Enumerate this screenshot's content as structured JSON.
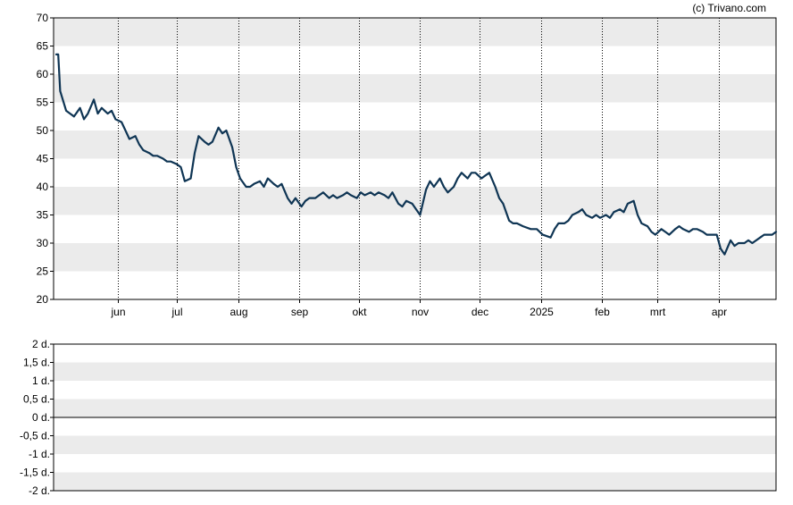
{
  "credit": "(c) Trivano.com",
  "colors": {
    "line": "#0f3554",
    "band": "#ebebeb",
    "axis": "#000000"
  },
  "chart_data": [
    {
      "type": "line",
      "title": "",
      "xlabel": "",
      "ylabel": "",
      "ylim": [
        20,
        70
      ],
      "yticks": [
        "70",
        "65",
        "60",
        "55",
        "50",
        "45",
        "40",
        "35",
        "30",
        "25",
        "20"
      ],
      "xticks": [
        "jun",
        "jul",
        "aug",
        "sep",
        "okt",
        "nov",
        "dec",
        "2025",
        "feb",
        "mrt",
        "apr"
      ],
      "grid": "alternating horizontal bands, dotted vertical lines at month ticks",
      "series": [
        {
          "x": [
            "2024-05-01",
            "2024-05-02",
            "2024-05-03",
            "2024-05-06",
            "2024-05-08",
            "2024-05-10",
            "2024-05-13",
            "2024-05-15",
            "2024-05-17",
            "2024-05-20",
            "2024-05-22",
            "2024-05-24",
            "2024-05-27",
            "2024-05-29",
            "2024-05-31",
            "2024-06-03",
            "2024-06-05",
            "2024-06-07",
            "2024-06-10",
            "2024-06-12",
            "2024-06-14",
            "2024-06-17",
            "2024-06-19",
            "2024-06-21",
            "2024-06-24",
            "2024-06-26",
            "2024-06-28",
            "2024-07-01",
            "2024-07-03",
            "2024-07-05",
            "2024-07-08",
            "2024-07-10",
            "2024-07-12",
            "2024-07-15",
            "2024-07-17",
            "2024-07-19",
            "2024-07-22",
            "2024-07-24",
            "2024-07-26",
            "2024-07-29",
            "2024-07-31",
            "2024-08-02",
            "2024-08-05",
            "2024-08-07",
            "2024-08-09",
            "2024-08-12",
            "2024-08-14",
            "2024-08-16",
            "2024-08-19",
            "2024-08-21",
            "2024-08-23",
            "2024-08-26",
            "2024-08-28",
            "2024-08-30",
            "2024-09-02",
            "2024-09-04",
            "2024-09-06",
            "2024-09-09",
            "2024-09-11",
            "2024-09-13",
            "2024-09-16",
            "2024-09-18",
            "2024-09-20",
            "2024-09-23",
            "2024-09-25",
            "2024-09-27",
            "2024-09-30",
            "2024-10-02",
            "2024-10-04",
            "2024-10-07",
            "2024-10-09",
            "2024-10-11",
            "2024-10-14",
            "2024-10-16",
            "2024-10-18",
            "2024-10-21",
            "2024-10-23",
            "2024-10-25",
            "2024-10-28",
            "2024-10-30",
            "2024-11-01",
            "2024-11-04",
            "2024-11-06",
            "2024-11-08",
            "2024-11-11",
            "2024-11-13",
            "2024-11-15",
            "2024-11-18",
            "2024-11-20",
            "2024-11-22",
            "2024-11-25",
            "2024-11-27",
            "2024-11-29",
            "2024-12-02",
            "2024-12-04",
            "2024-12-06",
            "2024-12-09",
            "2024-12-11",
            "2024-12-13",
            "2024-12-16",
            "2024-12-18",
            "2024-12-20",
            "2024-12-23",
            "2024-12-27",
            "2024-12-30",
            "2025-01-02",
            "2025-01-06",
            "2025-01-08",
            "2025-01-10",
            "2025-01-13",
            "2025-01-15",
            "2025-01-17",
            "2025-01-20",
            "2025-01-22",
            "2025-01-24",
            "2025-01-27",
            "2025-01-29",
            "2025-01-31",
            "2025-02-03",
            "2025-02-05",
            "2025-02-07",
            "2025-02-10",
            "2025-02-12",
            "2025-02-14",
            "2025-02-17",
            "2025-02-19",
            "2025-02-21",
            "2025-02-24",
            "2025-02-26",
            "2025-02-28",
            "2025-03-03",
            "2025-03-05",
            "2025-03-07",
            "2025-03-10",
            "2025-03-12",
            "2025-03-14",
            "2025-03-17",
            "2025-03-19",
            "2025-03-21",
            "2025-03-24",
            "2025-03-26",
            "2025-03-28",
            "2025-03-31",
            "2025-04-02",
            "2025-04-04",
            "2025-04-07",
            "2025-04-09",
            "2025-04-11",
            "2025-04-14",
            "2025-04-16",
            "2025-04-18",
            "2025-04-22",
            "2025-04-24",
            "2025-04-28",
            "2025-04-30"
          ],
          "values": [
            63.5,
            63.5,
            57.0,
            53.5,
            53.0,
            52.5,
            54.0,
            52.0,
            53.0,
            55.5,
            53.0,
            54.0,
            53.0,
            53.5,
            52.0,
            51.5,
            50.0,
            48.5,
            49.0,
            47.5,
            46.5,
            46.0,
            45.5,
            45.5,
            45.0,
            44.5,
            44.5,
            44.0,
            43.5,
            41.0,
            41.5,
            46.0,
            49.0,
            48.0,
            47.5,
            48.0,
            50.5,
            49.5,
            50.0,
            47.0,
            43.5,
            41.5,
            40.0,
            40.0,
            40.5,
            41.0,
            40.0,
            41.5,
            40.5,
            40.0,
            40.5,
            38.0,
            37.0,
            38.0,
            36.5,
            37.5,
            38.0,
            38.0,
            38.5,
            39.0,
            38.0,
            38.5,
            38.0,
            38.5,
            39.0,
            38.5,
            38.0,
            39.0,
            38.5,
            39.0,
            38.5,
            39.0,
            38.5,
            38.0,
            39.0,
            37.0,
            36.5,
            37.5,
            37.0,
            36.0,
            35.0,
            39.5,
            41.0,
            40.0,
            41.5,
            40.0,
            39.0,
            40.0,
            41.5,
            42.5,
            41.5,
            42.5,
            42.5,
            41.5,
            42.0,
            42.5,
            40.0,
            38.0,
            37.0,
            34.0,
            33.5,
            33.5,
            33.0,
            32.5,
            32.5,
            31.5,
            31.0,
            32.5,
            33.5,
            33.5,
            34.0,
            35.0,
            35.5,
            36.0,
            35.0,
            34.5,
            35.0,
            34.5,
            35.0,
            34.5,
            35.5,
            36.0,
            35.5,
            37.0,
            37.5,
            35.0,
            33.5,
            33.0,
            32.0,
            31.5,
            32.5,
            32.0,
            31.5,
            32.5,
            33.0,
            32.5,
            32.0,
            32.5,
            32.5,
            32.0,
            31.5,
            31.5,
            31.5,
            29.0,
            28.0,
            30.5,
            29.5,
            30.0,
            30.0,
            30.5,
            30.0,
            31.0,
            31.5,
            31.5,
            32.0
          ]
        }
      ]
    },
    {
      "type": "bar",
      "title": "",
      "xlabel": "",
      "ylabel": "",
      "ylim": [
        -2,
        2
      ],
      "yticks": [
        "2 d.",
        "1,5 d.",
        "1 d.",
        "0,5 d.",
        "0 d.",
        "-0,5 d.",
        "-1 d.",
        "-1,5 d.",
        "-2 d."
      ],
      "grid": "alternating horizontal bands",
      "values": []
    }
  ]
}
